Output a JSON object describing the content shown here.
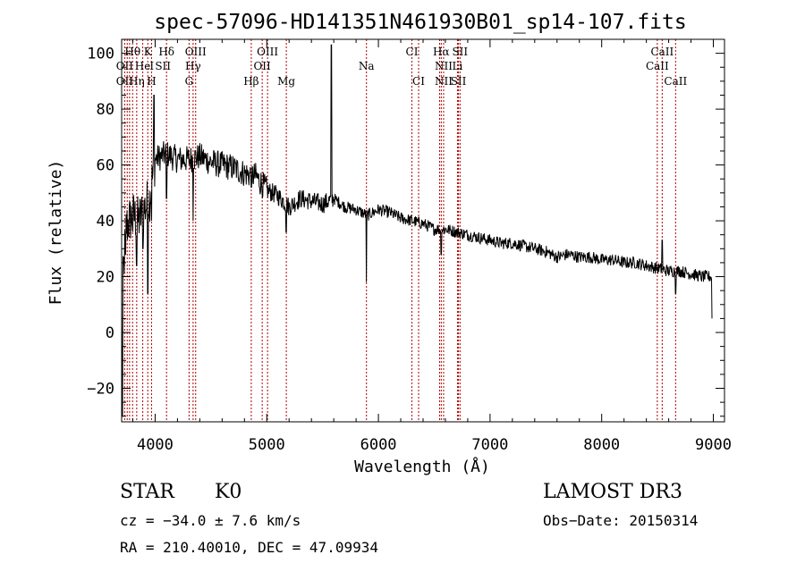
{
  "chart_data": {
    "type": "line",
    "title": "spec-57096-HD141351N461930B01_sp14-107.fits",
    "xlabel": "Wavelength (Å)",
    "ylabel": "Flux (relative)",
    "xlim": [
      3700,
      9100
    ],
    "ylim": [
      -32,
      105
    ],
    "x_ticks": [
      4000,
      5000,
      6000,
      7000,
      8000,
      9000
    ],
    "y_ticks": [
      -20,
      0,
      20,
      40,
      60,
      80,
      100
    ],
    "grid": false,
    "series": [
      {
        "name": "spectrum",
        "continuum": [
          [
            3700,
            10
          ],
          [
            3740,
            38
          ],
          [
            3800,
            42
          ],
          [
            3850,
            40
          ],
          [
            3900,
            44
          ],
          [
            3950,
            48
          ],
          [
            4000,
            62
          ],
          [
            4100,
            64
          ],
          [
            4200,
            62
          ],
          [
            4300,
            62
          ],
          [
            4400,
            63
          ],
          [
            4500,
            61
          ],
          [
            4600,
            60
          ],
          [
            4700,
            59
          ],
          [
            4800,
            57
          ],
          [
            4900,
            56
          ],
          [
            5000,
            51
          ],
          [
            5100,
            49
          ],
          [
            5200,
            45
          ],
          [
            5300,
            48
          ],
          [
            5400,
            47
          ],
          [
            5500,
            46
          ],
          [
            5600,
            48
          ],
          [
            5700,
            45
          ],
          [
            5800,
            44
          ],
          [
            5900,
            42
          ],
          [
            6000,
            44
          ],
          [
            6100,
            43
          ],
          [
            6200,
            41
          ],
          [
            6300,
            40
          ],
          [
            6400,
            39
          ],
          [
            6500,
            37
          ],
          [
            6600,
            37
          ],
          [
            6700,
            36
          ],
          [
            6800,
            35
          ],
          [
            6900,
            34
          ],
          [
            7000,
            33
          ],
          [
            7100,
            32
          ],
          [
            7200,
            32
          ],
          [
            7300,
            31
          ],
          [
            7400,
            30
          ],
          [
            7500,
            29
          ],
          [
            7600,
            27
          ],
          [
            7700,
            28
          ],
          [
            7800,
            27
          ],
          [
            7900,
            27
          ],
          [
            8000,
            26
          ],
          [
            8100,
            26
          ],
          [
            8200,
            25
          ],
          [
            8300,
            25
          ],
          [
            8400,
            24
          ],
          [
            8500,
            23
          ],
          [
            8600,
            22
          ],
          [
            8700,
            22
          ],
          [
            8800,
            21
          ],
          [
            8900,
            20
          ],
          [
            8990,
            20
          ]
        ],
        "features": [
          [
            3705,
            -30
          ],
          [
            3735,
            28
          ],
          [
            3800,
            36
          ],
          [
            3835,
            24
          ],
          [
            3889,
            30
          ],
          [
            3934,
            14
          ],
          [
            3968,
            40
          ],
          [
            3990,
            85
          ],
          [
            4102,
            48
          ],
          [
            4340,
            40
          ],
          [
            4861,
            52
          ],
          [
            5175,
            36
          ],
          [
            5577,
            103
          ],
          [
            5893,
            18
          ],
          [
            5896,
            40
          ],
          [
            6563,
            28
          ],
          [
            8542,
            33
          ],
          [
            8662,
            14
          ],
          [
            8990,
            5
          ]
        ]
      }
    ],
    "line_labels": [
      {
        "text": "Hθ",
        "wave": 3798,
        "row": 0
      },
      {
        "text": "K",
        "wave": 3934,
        "row": 0
      },
      {
        "text": "Hδ",
        "wave": 4102,
        "row": 0
      },
      {
        "text": "OIII",
        "wave": 4363,
        "row": 0
      },
      {
        "text": "OIII",
        "wave": 5007,
        "row": 0
      },
      {
        "text": "CI",
        "wave": 6300,
        "row": 0
      },
      {
        "text": "Hα",
        "wave": 6563,
        "row": 0
      },
      {
        "text": "SII",
        "wave": 6731,
        "row": 0
      },
      {
        "text": "CaII",
        "wave": 8542,
        "row": 0
      },
      {
        "text": "OII",
        "wave": 3727,
        "row": 1
      },
      {
        "text": "He",
        "wave": 3889,
        "row": 1
      },
      {
        "text": "I",
        "wave": 3970,
        "row": 1
      },
      {
        "text": "SII",
        "wave": 4070,
        "row": 1
      },
      {
        "text": "Hγ",
        "wave": 4340,
        "row": 1
      },
      {
        "text": "OII",
        "wave": 4959,
        "row": 1
      },
      {
        "text": "Na",
        "wave": 5893,
        "row": 1
      },
      {
        "text": "NII",
        "wave": 6584,
        "row": 1
      },
      {
        "text": "Li",
        "wave": 6708,
        "row": 1
      },
      {
        "text": "CaII",
        "wave": 8498,
        "row": 1
      },
      {
        "text": "OII",
        "wave": 3727,
        "row": 2
      },
      {
        "text": "Hη",
        "wave": 3835,
        "row": 2
      },
      {
        "text": "H",
        "wave": 3968,
        "row": 2
      },
      {
        "text": "G",
        "wave": 4304,
        "row": 2
      },
      {
        "text": "Hβ",
        "wave": 4861,
        "row": 2
      },
      {
        "text": "Mg",
        "wave": 5175,
        "row": 2
      },
      {
        "text": "CI",
        "wave": 6360,
        "row": 2
      },
      {
        "text": "NII",
        "wave": 6584,
        "row": 2
      },
      {
        "text": "SII",
        "wave": 6717,
        "row": 2
      },
      {
        "text": "CaII",
        "wave": 8662,
        "row": 2
      }
    ],
    "line_positions": [
      3727,
      3750,
      3771,
      3798,
      3835,
      3889,
      3934,
      3968,
      4102,
      4304,
      4340,
      4363,
      4861,
      4959,
      5007,
      5175,
      5893,
      6300,
      6360,
      6548,
      6563,
      6584,
      6708,
      6717,
      6731,
      8498,
      8542,
      8662
    ],
    "line_color": "#b00000"
  },
  "info": {
    "class": "STAR",
    "subclass": "K0",
    "survey": "LAMOST DR3",
    "redshift": "cz = −34.0 ± 7.6 km/s",
    "obs_date": "Obs−Date: 20150314",
    "coords": "RA = 210.40010, DEC =  47.09934"
  }
}
